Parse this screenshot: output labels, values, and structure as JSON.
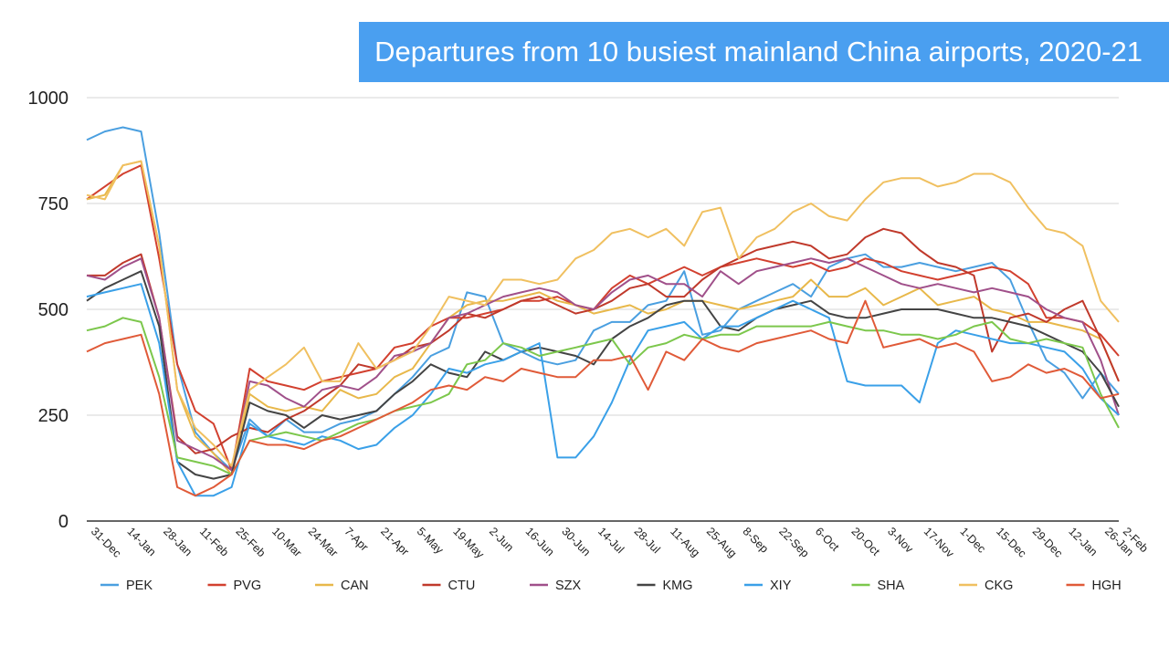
{
  "chart_data": {
    "type": "line",
    "title": "Departures from 10 busiest mainland China airports, 2020-21",
    "ylim": [
      0,
      1000
    ],
    "yticks": [
      0,
      250,
      500,
      750,
      1000
    ],
    "grid": true,
    "legend_position": "bottom",
    "x_tick_labels": [
      "31-Dec",
      "14-Jan",
      "28-Jan",
      "11-Feb",
      "25-Feb",
      "10-Mar",
      "24-Mar",
      "7-Apr",
      "21-Apr",
      "5-May",
      "19-May",
      "2-Jun",
      "16-Jun",
      "30-Jun",
      "14-Jul",
      "28-Jul",
      "11-Aug",
      "25-Aug",
      "8-Sep",
      "22-Sep",
      "6-Oct",
      "20-Oct",
      "3-Nov",
      "17-Nov",
      "1-Dec",
      "15-Dec",
      "29-Dec",
      "12-Jan",
      "26-Jan",
      "2-Feb"
    ],
    "x_tick_positions": [
      0,
      2,
      4,
      6,
      8,
      10,
      12,
      14,
      16,
      18,
      20,
      22,
      24,
      26,
      28,
      30,
      32,
      34,
      36,
      38,
      40,
      42,
      44,
      46,
      48,
      50,
      52,
      54,
      56,
      57
    ],
    "series": [
      {
        "name": "PEK",
        "color": "#4a9fe0",
        "values": [
          900,
          920,
          930,
          920,
          680,
          370,
          210,
          160,
          120,
          240,
          200,
          240,
          210,
          210,
          230,
          240,
          260,
          300,
          340,
          390,
          410,
          540,
          530,
          420,
          400,
          380,
          370,
          380,
          450,
          470,
          470,
          510,
          520,
          590,
          440,
          450,
          500,
          520,
          540,
          560,
          530,
          600,
          620,
          630,
          600,
          600,
          610,
          600,
          590,
          600,
          610,
          570,
          470,
          380,
          350,
          290,
          350,
          300
        ]
      },
      {
        "name": "PVG",
        "color": "#d2402f",
        "values": [
          760,
          790,
          820,
          840,
          620,
          370,
          260,
          230,
          120,
          360,
          330,
          320,
          310,
          330,
          340,
          350,
          360,
          410,
          420,
          460,
          480,
          480,
          490,
          500,
          520,
          520,
          530,
          510,
          500,
          550,
          580,
          560,
          580,
          600,
          580,
          600,
          610,
          620,
          610,
          600,
          610,
          590,
          600,
          620,
          610,
          590,
          580,
          570,
          580,
          590,
          600,
          590,
          560,
          480,
          480,
          470,
          440,
          390
        ]
      },
      {
        "name": "CAN",
        "color": "#e8b84a",
        "values": [
          760,
          770,
          840,
          850,
          650,
          310,
          200,
          160,
          110,
          300,
          270,
          260,
          270,
          260,
          310,
          290,
          300,
          340,
          360,
          420,
          480,
          510,
          520,
          520,
          530,
          540,
          520,
          510,
          490,
          500,
          510,
          490,
          500,
          520,
          520,
          510,
          500,
          510,
          520,
          530,
          570,
          530,
          530,
          550,
          510,
          530,
          550,
          510,
          520,
          530,
          500,
          490,
          470,
          470,
          460,
          450,
          430,
          330
        ]
      },
      {
        "name": "CTU",
        "color": "#c0392b",
        "values": [
          580,
          580,
          610,
          630,
          480,
          200,
          160,
          170,
          200,
          220,
          210,
          240,
          260,
          290,
          320,
          370,
          360,
          380,
          410,
          420,
          450,
          490,
          480,
          500,
          520,
          530,
          510,
          490,
          500,
          520,
          550,
          560,
          530,
          530,
          570,
          600,
          620,
          640,
          650,
          660,
          650,
          620,
          630,
          670,
          690,
          680,
          640,
          610,
          600,
          580,
          400,
          480,
          490,
          470,
          500,
          520,
          430,
          330
        ]
      },
      {
        "name": "SZX",
        "color": "#a0508a",
        "values": [
          580,
          570,
          600,
          620,
          480,
          190,
          170,
          150,
          120,
          330,
          320,
          290,
          270,
          310,
          320,
          310,
          340,
          390,
          400,
          420,
          480,
          490,
          510,
          530,
          540,
          550,
          540,
          510,
          500,
          540,
          570,
          580,
          560,
          560,
          530,
          590,
          560,
          590,
          600,
          610,
          620,
          610,
          620,
          600,
          580,
          560,
          550,
          560,
          550,
          540,
          550,
          540,
          530,
          500,
          480,
          470,
          380,
          250
        ]
      },
      {
        "name": "KMG",
        "color": "#444444",
        "values": [
          520,
          550,
          570,
          590,
          460,
          140,
          110,
          100,
          110,
          280,
          260,
          250,
          220,
          250,
          240,
          250,
          260,
          300,
          330,
          370,
          350,
          340,
          400,
          380,
          400,
          410,
          400,
          390,
          370,
          430,
          460,
          480,
          510,
          520,
          520,
          460,
          450,
          480,
          500,
          510,
          520,
          490,
          480,
          480,
          490,
          500,
          500,
          500,
          490,
          480,
          480,
          470,
          460,
          440,
          420,
          400,
          350,
          270
        ]
      },
      {
        "name": "XIY",
        "color": "#3aa0e8",
        "values": [
          530,
          540,
          550,
          560,
          420,
          140,
          60,
          60,
          80,
          230,
          200,
          190,
          180,
          200,
          190,
          170,
          180,
          220,
          250,
          300,
          360,
          350,
          370,
          380,
          400,
          420,
          150,
          150,
          200,
          280,
          380,
          450,
          460,
          470,
          430,
          460,
          460,
          480,
          500,
          520,
          500,
          480,
          330,
          320,
          320,
          320,
          280,
          420,
          450,
          440,
          430,
          420,
          420,
          410,
          400,
          360,
          290,
          250
        ]
      },
      {
        "name": "SHA",
        "color": "#7cc74c",
        "values": [
          450,
          460,
          480,
          470,
          340,
          150,
          140,
          130,
          110,
          190,
          200,
          210,
          200,
          190,
          210,
          230,
          240,
          260,
          270,
          280,
          300,
          370,
          380,
          420,
          410,
          390,
          400,
          410,
          420,
          430,
          370,
          410,
          420,
          440,
          430,
          440,
          440,
          460,
          460,
          460,
          460,
          470,
          460,
          450,
          450,
          440,
          440,
          430,
          440,
          460,
          470,
          430,
          420,
          430,
          420,
          410,
          300,
          220
        ]
      },
      {
        "name": "CKG",
        "color": "#f0c060",
        "values": [
          770,
          760,
          840,
          850,
          650,
          310,
          220,
          180,
          130,
          310,
          340,
          370,
          410,
          330,
          330,
          420,
          360,
          380,
          400,
          460,
          530,
          520,
          510,
          570,
          570,
          560,
          570,
          620,
          640,
          680,
          690,
          670,
          690,
          650,
          730,
          740,
          620,
          670,
          690,
          730,
          750,
          720,
          710,
          760,
          800,
          810,
          810,
          790,
          800,
          820,
          820,
          800,
          740,
          690,
          680,
          650,
          520,
          470
        ]
      },
      {
        "name": "HGH",
        "color": "#e05a38",
        "values": [
          400,
          420,
          430,
          440,
          300,
          80,
          60,
          80,
          110,
          190,
          180,
          180,
          170,
          190,
          200,
          220,
          240,
          260,
          280,
          310,
          320,
          310,
          340,
          330,
          360,
          350,
          340,
          340,
          380,
          380,
          390,
          310,
          400,
          380,
          430,
          410,
          400,
          420,
          430,
          440,
          450,
          430,
          420,
          520,
          410,
          420,
          430,
          410,
          420,
          400,
          330,
          340,
          370,
          350,
          360,
          340,
          290,
          300
        ]
      }
    ]
  }
}
